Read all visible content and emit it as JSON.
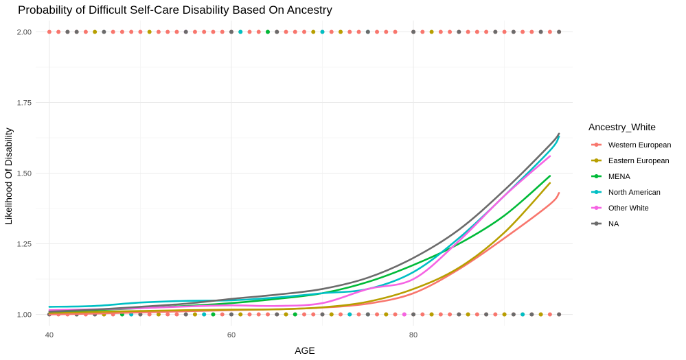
{
  "chart_data": {
    "type": "scatter",
    "title": "Probability of Difficult Self-Care Disability Based On Ancestry",
    "xlabel": "AGE",
    "ylabel": "Likelihood Of Disability",
    "xlim": [
      38.5,
      97.5
    ],
    "ylim": [
      0.96,
      2.04
    ],
    "x_ticks": [
      40,
      60,
      80
    ],
    "x_minor_ticks": [
      50,
      70,
      90
    ],
    "y_ticks": [
      1.0,
      1.25,
      1.5,
      1.75,
      2.0
    ],
    "y_tick_labels": [
      "1.00",
      "1.25",
      "1.50",
      "1.75",
      "2.00"
    ],
    "grid": true,
    "legend": {
      "title": "Ancestry_White",
      "position": "right"
    },
    "series": [
      {
        "name": "Western European",
        "color": "#F8766D",
        "points_at_1": [
          40,
          41,
          42,
          43,
          44,
          45,
          46,
          47,
          48,
          49,
          50,
          51,
          52,
          53,
          54,
          55,
          56,
          57,
          58,
          59,
          60,
          61,
          62,
          63,
          64,
          65,
          66,
          67,
          68,
          69,
          70,
          71,
          72,
          73,
          74,
          75,
          76,
          77,
          78,
          79,
          80,
          81,
          82,
          83,
          84,
          85,
          86,
          87,
          88,
          89,
          90,
          91,
          92,
          93,
          94,
          95,
          96
        ],
        "points_at_2": [
          40,
          41,
          42,
          43,
          44,
          47,
          48,
          49,
          50,
          52,
          53,
          54,
          56,
          57,
          58,
          59,
          60,
          62,
          63,
          64,
          65,
          66,
          67,
          68,
          70,
          71,
          72,
          73,
          74,
          76,
          77,
          78,
          80,
          81,
          83,
          84,
          85,
          86,
          87,
          88,
          89,
          90,
          91,
          92,
          93,
          94,
          95,
          96
        ],
        "fit_x": [
          40,
          45,
          50,
          55,
          60,
          65,
          70,
          75,
          80,
          85,
          90,
          95,
          96
        ],
        "fit_y": [
          1.0,
          1.003,
          1.007,
          1.011,
          1.015,
          1.018,
          1.024,
          1.038,
          1.075,
          1.16,
          1.27,
          1.39,
          1.43
        ]
      },
      {
        "name": "Eastern European",
        "color": "#B79F00",
        "points_at_1": [
          43,
          46,
          52,
          56,
          61,
          66,
          71,
          77,
          82,
          86,
          90,
          94
        ],
        "points_at_2": [
          45,
          51,
          61,
          69,
          72,
          82
        ],
        "fit_x": [
          40,
          45,
          50,
          55,
          60,
          65,
          70,
          75,
          80,
          85,
          90,
          95
        ],
        "fit_y": [
          1.005,
          1.009,
          1.012,
          1.015,
          1.017,
          1.018,
          1.025,
          1.045,
          1.09,
          1.165,
          1.29,
          1.465
        ]
      },
      {
        "name": "MENA",
        "color": "#00BA38",
        "points_at_1": [
          48,
          58,
          67
        ],
        "points_at_2": [
          64
        ],
        "fit_x": [
          40,
          45,
          50,
          55,
          60,
          65,
          70,
          75,
          80,
          85,
          90,
          95
        ],
        "fit_y": [
          1.01,
          1.015,
          1.022,
          1.03,
          1.04,
          1.055,
          1.075,
          1.115,
          1.175,
          1.25,
          1.35,
          1.49
        ]
      },
      {
        "name": "North American",
        "color": "#00BFC4",
        "points_at_1": [
          49,
          57,
          73,
          75,
          92
        ],
        "points_at_2": [
          61,
          70,
          75
        ],
        "fit_x": [
          40,
          45,
          50,
          55,
          60,
          65,
          70,
          75,
          80,
          85,
          90,
          95,
          96
        ],
        "fit_y": [
          1.027,
          1.03,
          1.042,
          1.048,
          1.05,
          1.06,
          1.075,
          1.09,
          1.15,
          1.27,
          1.42,
          1.58,
          1.63
        ]
      },
      {
        "name": "Other White",
        "color": "#F564E3",
        "points_at_1": [
          79
        ],
        "points_at_2": [
          55
        ],
        "fit_x": [
          40,
          45,
          50,
          55,
          60,
          65,
          70,
          75,
          80,
          85,
          90,
          95
        ],
        "fit_y": [
          1.015,
          1.018,
          1.022,
          1.028,
          1.032,
          1.03,
          1.04,
          1.09,
          1.125,
          1.26,
          1.42,
          1.56
        ]
      },
      {
        "name": "NA",
        "color": "#6b6b6b",
        "points_at_1": [
          40,
          43,
          45,
          50,
          55,
          60,
          65,
          70,
          75,
          80,
          85,
          88,
          91,
          93,
          96
        ],
        "points_at_2": [
          42,
          43,
          46,
          55,
          60,
          65,
          75,
          80,
          85,
          89,
          91,
          94,
          96
        ],
        "fit_x": [
          40,
          45,
          50,
          55,
          60,
          65,
          70,
          75,
          80,
          85,
          90,
          95,
          96
        ],
        "fit_y": [
          1.01,
          1.017,
          1.027,
          1.038,
          1.055,
          1.07,
          1.09,
          1.13,
          1.2,
          1.3,
          1.44,
          1.6,
          1.64
        ]
      }
    ]
  }
}
